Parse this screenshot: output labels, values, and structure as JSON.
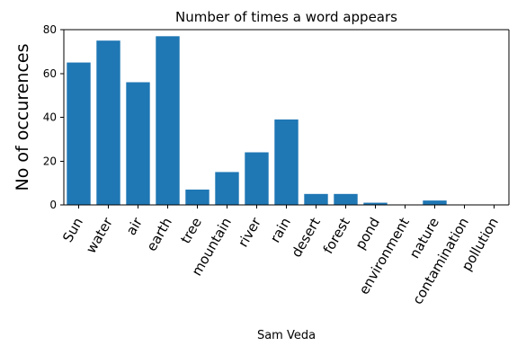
{
  "chart_data": {
    "type": "bar",
    "title": "Number of times a word appears",
    "xlabel": "Sam Veda",
    "ylabel": "No of occurences",
    "categories": [
      "Sun",
      "water",
      "air",
      "earth",
      "tree",
      "mountain",
      "river",
      "rain",
      "desert",
      "forest",
      "pond",
      "environment",
      "nature",
      "contamination",
      "pollution"
    ],
    "values": [
      65,
      75,
      56,
      77,
      7,
      15,
      24,
      39,
      5,
      5,
      1,
      0,
      2,
      0,
      0
    ],
    "ylim": [
      0,
      80
    ],
    "yticks": [
      0,
      20,
      40,
      60,
      80
    ],
    "grid": false,
    "bar_color": "#1f77b4"
  }
}
